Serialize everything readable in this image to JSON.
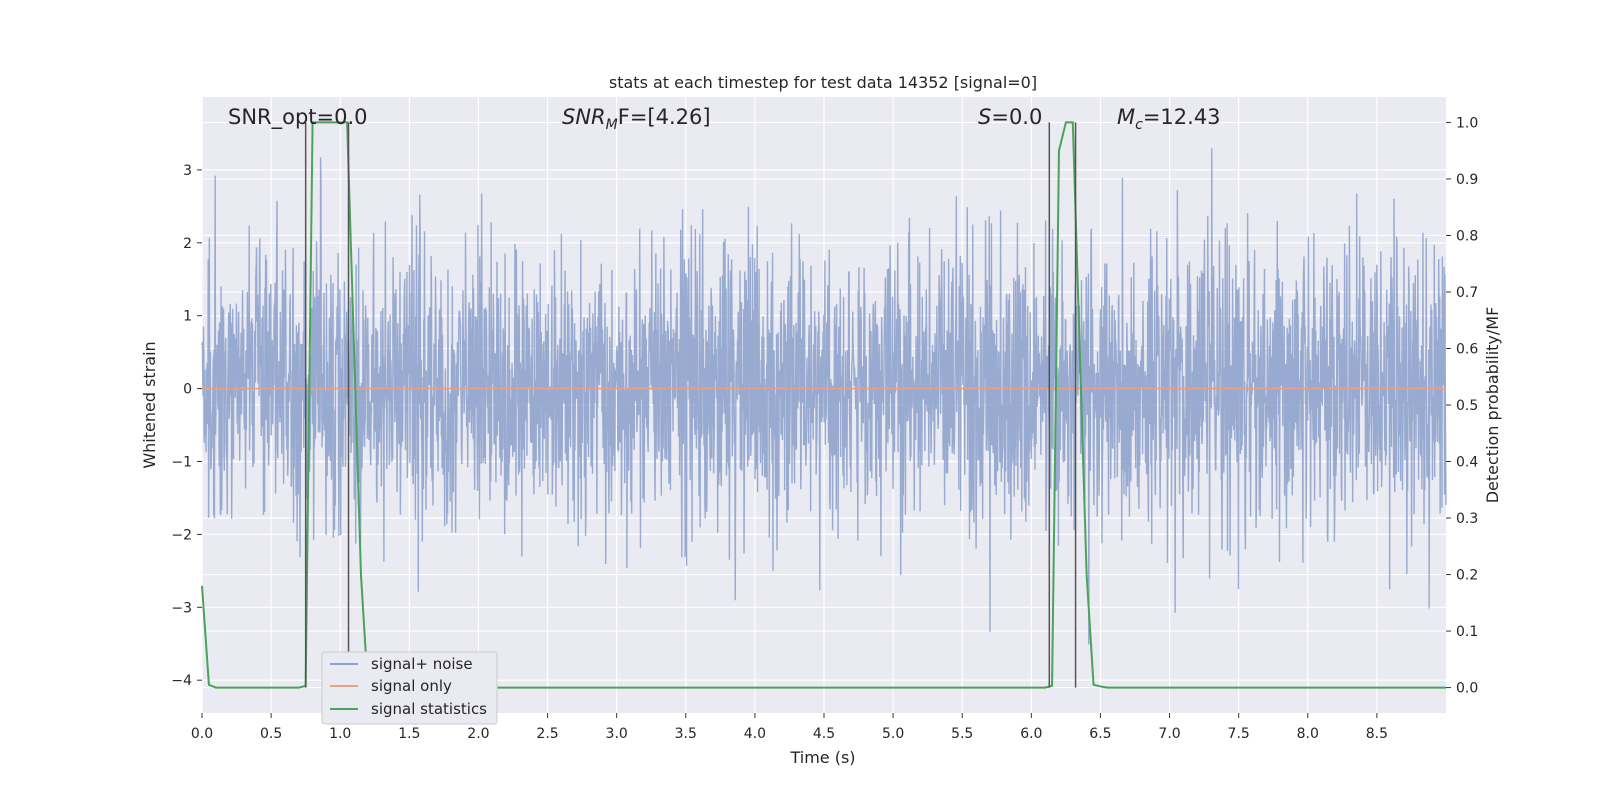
{
  "chart_data": {
    "type": "line",
    "title": "stats at each timestep for test data 14352 [signal=0]",
    "xlabel": "Time (s)",
    "ylabel": "Whitened strain",
    "ylabel_right": "Detection probability/MF",
    "xlim": [
      0,
      9.0
    ],
    "ylim": [
      -4.45,
      4.0
    ],
    "ylim_right": [
      -0.045,
      1.045
    ],
    "x_ticks": [
      0.0,
      0.5,
      1.0,
      1.5,
      2.0,
      2.5,
      3.0,
      3.5,
      4.0,
      4.5,
      5.0,
      5.5,
      6.0,
      6.5,
      7.0,
      7.5,
      8.0,
      8.5
    ],
    "x_tick_labels": [
      "0.0",
      "0.5",
      "1.0",
      "1.5",
      "2.0",
      "2.5",
      "3.0",
      "3.5",
      "4.0",
      "4.5",
      "5.0",
      "5.5",
      "6.0",
      "6.5",
      "7.0",
      "7.5",
      "8.0",
      "8.5"
    ],
    "y_ticks": [
      3,
      2,
      1,
      0,
      -1,
      -2,
      -3,
      -4
    ],
    "y_tick_labels": [
      "3",
      "2",
      "1",
      "0",
      "−1",
      "−2",
      "−3",
      "−4"
    ],
    "y_ticks_right": [
      1.0,
      0.9,
      0.8,
      0.7,
      0.6,
      0.5,
      0.4,
      0.3,
      0.2,
      0.1,
      0.0
    ],
    "y_tick_labels_right": [
      "1.0",
      "0.9",
      "0.8",
      "0.7",
      "0.6",
      "0.5",
      "0.4",
      "0.3",
      "0.2",
      "0.1",
      "0.0"
    ],
    "grid": true,
    "legend_position": "lower-left",
    "annotations": {
      "snr_opt": "SNR_opt=0.0",
      "snr_mf_prefix": "SNR",
      "snr_mf_sub": "M",
      "snr_mf_suffix": "F=[4.26]",
      "s_prefix": "S",
      "s_suffix": "=0.0",
      "mc_prefix": "M",
      "mc_sub": "c",
      "mc_suffix": "=12.43"
    },
    "series": [
      {
        "name": "signal+ noise",
        "color": "#8fa3cc",
        "axis": "left",
        "noise_description": "dense whitened noise, roughly Gaussian, peaks near ±3.5"
      },
      {
        "name": "signal only",
        "color": "#e5a085",
        "axis": "left",
        "x": [
          0.0,
          9.0
        ],
        "y": [
          0.0,
          0.0
        ]
      },
      {
        "name": "signal statistics",
        "color": "#4aa35a",
        "axis": "right",
        "x": [
          0.0,
          0.05,
          0.1,
          0.15,
          0.7,
          0.75,
          0.8,
          1.05,
          1.1,
          1.15,
          1.2,
          6.1,
          6.15,
          6.2,
          6.25,
          6.3,
          6.35,
          6.4,
          6.45,
          6.5,
          6.55,
          9.0
        ],
        "y": [
          0.18,
          0.005,
          0.0,
          0.0,
          0.0,
          0.003,
          1.0,
          1.0,
          0.6,
          0.2,
          0.0,
          0.0,
          0.003,
          0.95,
          1.0,
          1.0,
          0.6,
          0.2,
          0.005,
          0.002,
          0.0,
          0.0
        ]
      }
    ],
    "vertical_markers": [
      0.75,
      1.06,
      6.13,
      6.32
    ],
    "vertical_marker_color": "#555555"
  }
}
